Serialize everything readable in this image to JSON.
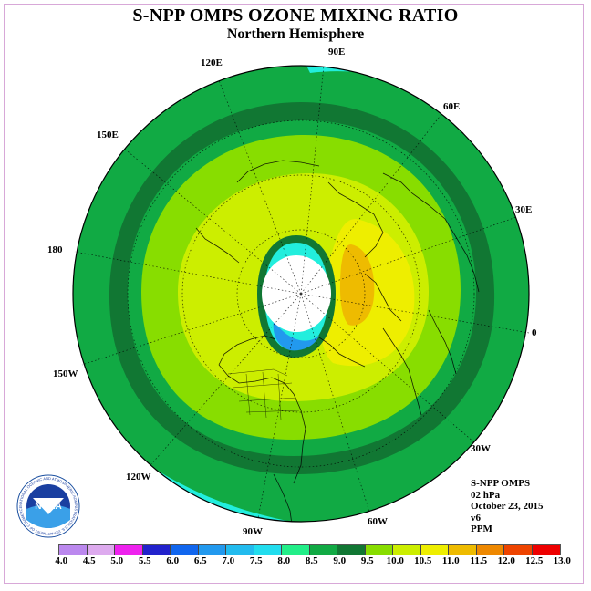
{
  "title": "S-NPP OMPS OZONE MIXING RATIO",
  "subtitle": "Northern Hemisphere",
  "map": {
    "projection": "polar stereographic, north pole",
    "longitude_labels": [
      "90E",
      "60E",
      "30E",
      "0",
      "30W",
      "60W",
      "90W",
      "120W",
      "150W",
      "180",
      "150E",
      "120E"
    ]
  },
  "info": {
    "instrument": "S-NPP OMPS",
    "level": "02 hPa",
    "date": "October 23, 2015",
    "version": "v6",
    "units": "PPM"
  },
  "logo": {
    "text": "NOAA",
    "ring_text": "NATIONAL OCEANIC AND ATMOSPHERIC ADMINISTRATION U.S. DEPARTMENT OF COMMERCE"
  },
  "colorbar": {
    "ticks": [
      "4.0",
      "4.5",
      "5.0",
      "5.5",
      "6.0",
      "6.5",
      "7.0",
      "7.5",
      "8.0",
      "8.5",
      "9.0",
      "9.5",
      "10.0",
      "10.5",
      "11.0",
      "11.5",
      "12.0",
      "12.5",
      "13.0"
    ],
    "colors": [
      "#bb88ee",
      "#ddaaee",
      "#ee22ee",
      "#2222cc",
      "#1166ee",
      "#2299ee",
      "#22bbee",
      "#22ddee",
      "#22ee88",
      "#11aa44",
      "#117733",
      "#88dd00",
      "#ccee00",
      "#eeee00",
      "#eebb00",
      "#ee8800",
      "#ee4400",
      "#ee0000",
      "#884422"
    ]
  },
  "field_colors": {
    "outer": "#11aa44",
    "ring": "#117733",
    "cyan_patches": "#22eedd",
    "green_light": "#88dd00",
    "yellow_green": "#ccee00",
    "yellow": "#eeee00",
    "orange": "#eebb00",
    "blue_low": "#2299ee",
    "polar_night": "#ffffff"
  }
}
